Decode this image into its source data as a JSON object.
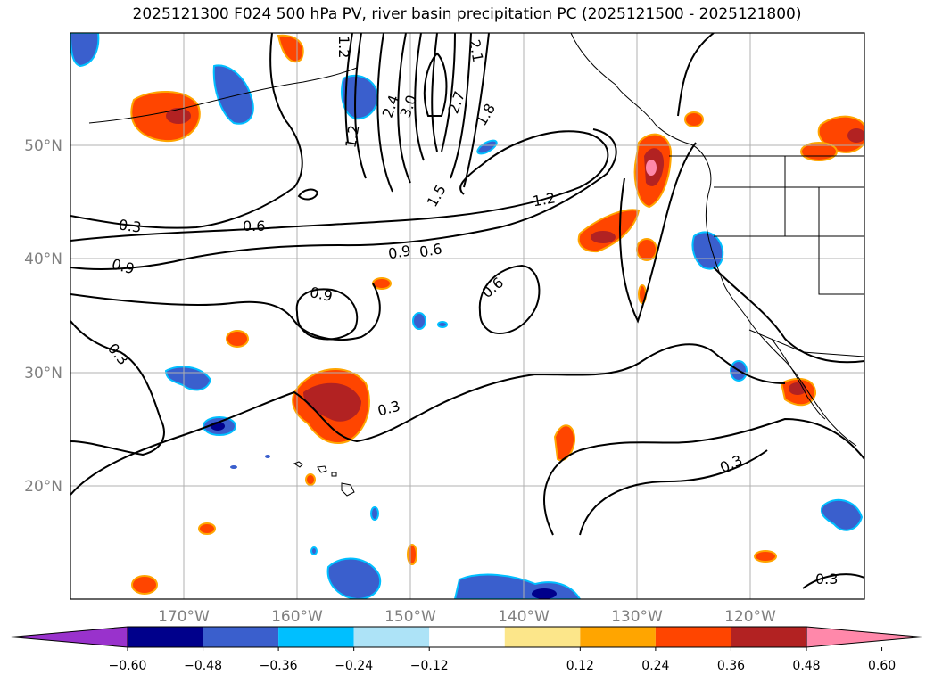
{
  "title": "2025121300 F024 500 hPa PV, river basin precipitation PC (2025121500 - 2025121800)",
  "map": {
    "lat_labels": [
      "50°N",
      "40°N",
      "30°N",
      "20°N"
    ],
    "lon_labels": [
      "170°W",
      "160°W",
      "150°W",
      "140°W",
      "130°W",
      "120°W"
    ]
  },
  "contour_labels": [
    "0.3",
    "0.6",
    "0.9",
    "0.6",
    "0.9",
    "0.9",
    "0.6",
    "0.3",
    "0.3",
    "0.3",
    "0.3",
    "1.2",
    "1.2",
    "1.5",
    "1.8",
    "2.1",
    "2.4",
    "2.7",
    "3.0",
    "1.2"
  ],
  "colorbar": {
    "colors": [
      "#9932CC",
      "#00008B",
      "#3A5FCD",
      "#00BFFF",
      "#ADE3F7",
      "#FFFFFF",
      "#FCE68A",
      "#FFA500",
      "#FF4500",
      "#B22222",
      "#FF88AA"
    ],
    "tick_labels": [
      "−0.60",
      "−0.48",
      "−0.36",
      "−0.24",
      "−0.12",
      "0.12",
      "0.24",
      "0.36",
      "0.48",
      "0.60"
    ]
  },
  "colors": {
    "positive_light": "#FCE68A",
    "positive_mid": "#FFA500",
    "positive_strong": "#FF4500",
    "positive_dark": "#B22222",
    "positive_max": "#FF88AA",
    "negative_light": "#00BFFF",
    "negative_mid": "#3A5FCD",
    "negative_dark": "#00008B",
    "grid": "#B0B0B0"
  }
}
